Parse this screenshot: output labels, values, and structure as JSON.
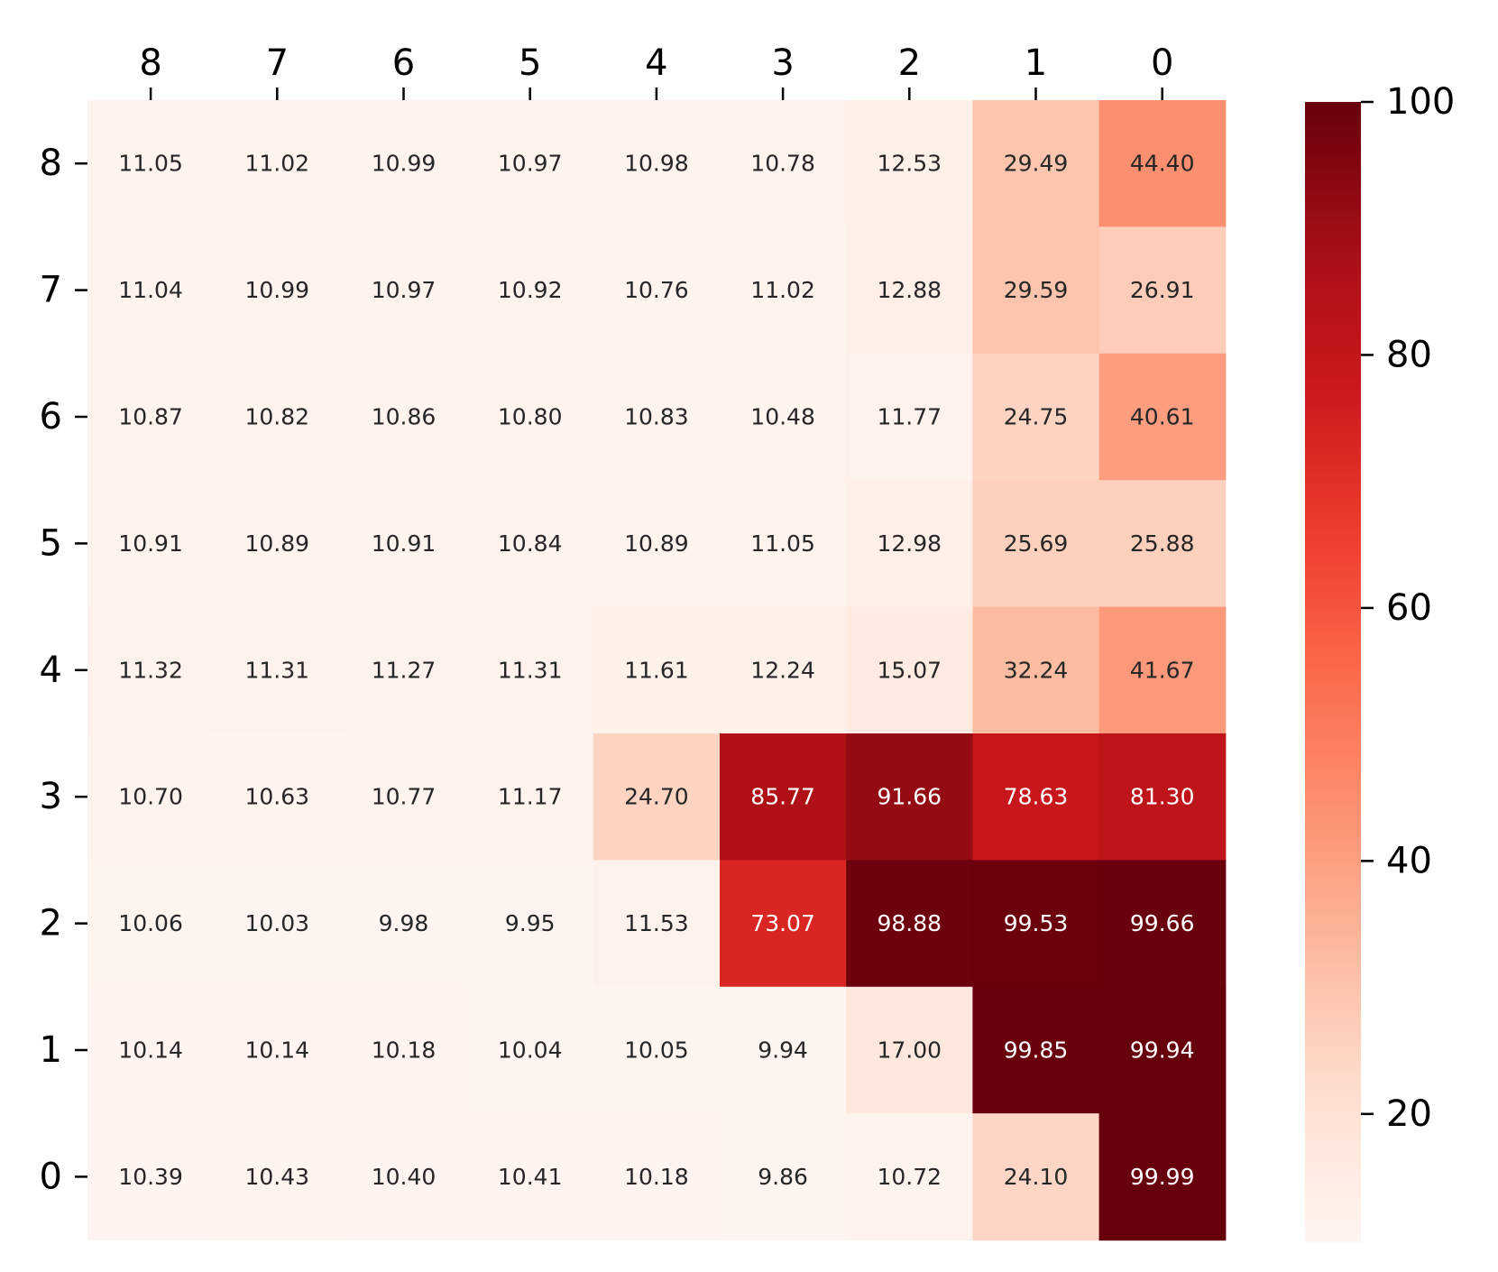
{
  "chart_data": {
    "type": "heatmap",
    "colormap": "Reds",
    "x_categories": [
      "8",
      "7",
      "6",
      "5",
      "4",
      "3",
      "2",
      "1",
      "0"
    ],
    "y_categories": [
      "8",
      "7",
      "6",
      "5",
      "4",
      "3",
      "2",
      "1",
      "0"
    ],
    "x_axis_position": "top",
    "values": [
      [
        11.05,
        11.02,
        10.99,
        10.97,
        10.98,
        10.78,
        12.53,
        29.49,
        44.4
      ],
      [
        11.04,
        10.99,
        10.97,
        10.92,
        10.76,
        11.02,
        12.88,
        29.59,
        26.91
      ],
      [
        10.87,
        10.82,
        10.86,
        10.8,
        10.83,
        10.48,
        11.77,
        24.75,
        40.61
      ],
      [
        10.91,
        10.89,
        10.91,
        10.84,
        10.89,
        11.05,
        12.98,
        25.69,
        25.88
      ],
      [
        11.32,
        11.31,
        11.27,
        11.31,
        11.61,
        12.24,
        15.07,
        32.24,
        41.67
      ],
      [
        10.7,
        10.63,
        10.77,
        11.17,
        24.7,
        85.77,
        91.66,
        78.63,
        81.3
      ],
      [
        10.06,
        10.03,
        9.98,
        9.95,
        11.53,
        73.07,
        98.88,
        99.53,
        99.66
      ],
      [
        10.14,
        10.14,
        10.18,
        10.04,
        10.05,
        9.94,
        17.0,
        99.85,
        99.94
      ],
      [
        10.39,
        10.43,
        10.4,
        10.41,
        10.18,
        9.86,
        10.72,
        24.1,
        99.99
      ]
    ],
    "colorbar": {
      "range": [
        9.86,
        100
      ],
      "ticks": [
        "20",
        "40",
        "60",
        "80",
        "100"
      ]
    },
    "title": "",
    "xlabel": "",
    "ylabel": ""
  }
}
